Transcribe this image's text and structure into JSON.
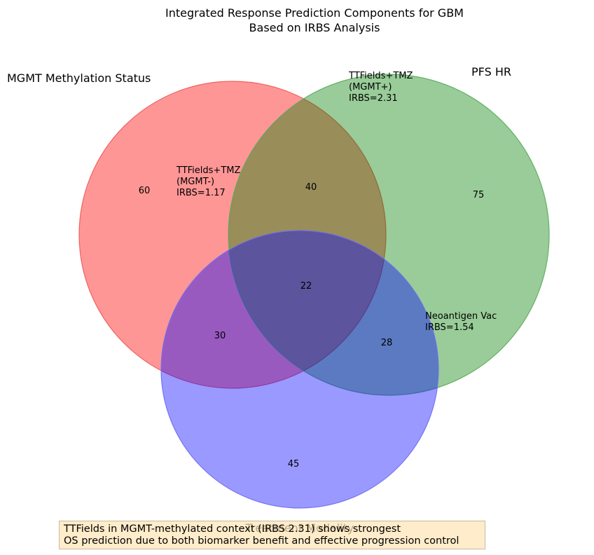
{
  "chart_data": {
    "type": "venn",
    "title": "Integrated Response Prediction Components for GBM\nBased on IRBS Analysis",
    "sets": [
      {
        "name": "MGMT Methylation Status",
        "color": "#ff0000"
      },
      {
        "name": "PFS HR",
        "color": "#008000"
      },
      {
        "name": "Treatment Modality",
        "color": "#0000ff"
      }
    ],
    "regions": {
      "A_only": 60,
      "B_only": 75,
      "C_only": 45,
      "AB": 40,
      "AC": 30,
      "BC": 28,
      "ABC": 22
    },
    "annotations": [
      "TTFields+TMZ\n(MGMT+)\nIRBS=2.31",
      "TTFields+TMZ\n(MGMT-)\nIRBS=1.17",
      "Neoantigen Vac\nIRBS=1.54"
    ]
  },
  "footnote": "TTFields in MGMT-methylated context (IRBS 2.31) shows strongest\nOS prediction due to both biomarker benefit and effective progression control"
}
